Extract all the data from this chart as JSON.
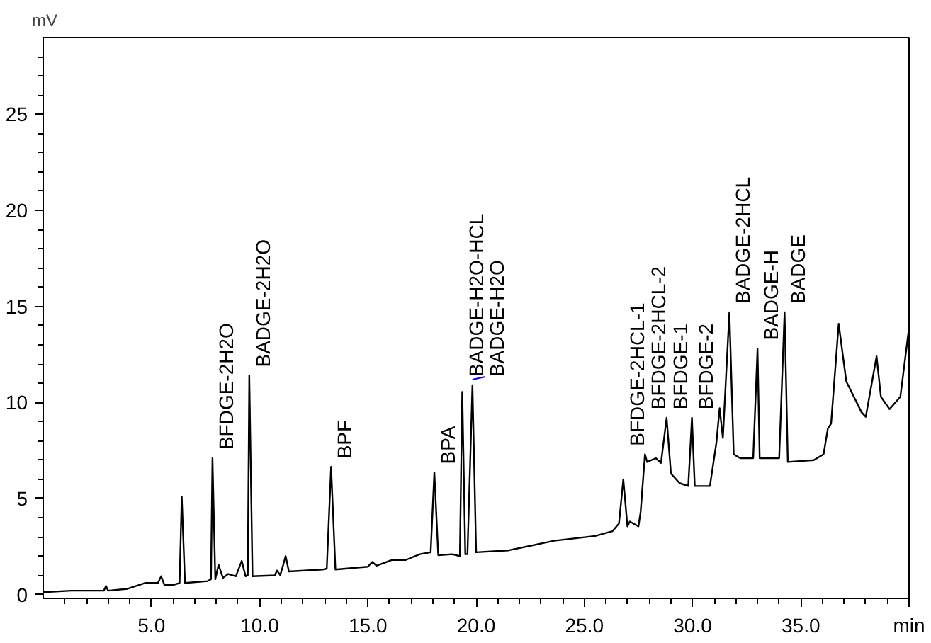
{
  "chart_data": {
    "type": "line",
    "ylabel": "mV",
    "xlim": [
      0,
      40
    ],
    "ylim": [
      -0.2,
      29
    ],
    "xticks": [
      {
        "value": 1,
        "label": null
      },
      {
        "value": 2,
        "label": null
      },
      {
        "value": 3,
        "label": null
      },
      {
        "value": 4,
        "label": null
      },
      {
        "value": 5,
        "label": "5.0"
      },
      {
        "value": 6,
        "label": null
      },
      {
        "value": 7,
        "label": null
      },
      {
        "value": 8,
        "label": null
      },
      {
        "value": 9,
        "label": null
      },
      {
        "value": 10,
        "label": "10.0"
      },
      {
        "value": 11,
        "label": null
      },
      {
        "value": 12,
        "label": null
      },
      {
        "value": 13,
        "label": null
      },
      {
        "value": 14,
        "label": null
      },
      {
        "value": 15,
        "label": "15.0"
      },
      {
        "value": 16,
        "label": null
      },
      {
        "value": 17,
        "label": null
      },
      {
        "value": 18,
        "label": null
      },
      {
        "value": 19,
        "label": null
      },
      {
        "value": 20,
        "label": "20.0"
      },
      {
        "value": 21,
        "label": null
      },
      {
        "value": 22,
        "label": null
      },
      {
        "value": 23,
        "label": null
      },
      {
        "value": 24,
        "label": null
      },
      {
        "value": 25,
        "label": "25.0"
      },
      {
        "value": 26,
        "label": null
      },
      {
        "value": 27,
        "label": null
      },
      {
        "value": 28,
        "label": null
      },
      {
        "value": 29,
        "label": null
      },
      {
        "value": 30,
        "label": "30.0"
      },
      {
        "value": 31,
        "label": null
      },
      {
        "value": 32,
        "label": null
      },
      {
        "value": 33,
        "label": null
      },
      {
        "value": 34,
        "label": null
      },
      {
        "value": 35,
        "label": "35.0"
      },
      {
        "value": 36,
        "label": null
      },
      {
        "value": 37,
        "label": null
      },
      {
        "value": 38,
        "label": null
      },
      {
        "value": 39,
        "label": null
      },
      {
        "value": 40,
        "label": "min"
      }
    ],
    "yticks": [
      0,
      {
        "value": 1,
        "label": null
      },
      {
        "value": 2,
        "label": null
      },
      {
        "value": 3,
        "label": null
      },
      {
        "value": 4,
        "label": null
      },
      5,
      {
        "value": 6,
        "label": null
      },
      {
        "value": 7,
        "label": null
      },
      {
        "value": 8,
        "label": null
      },
      {
        "value": 9,
        "label": null
      },
      10,
      {
        "value": 11,
        "label": null
      },
      {
        "value": 12,
        "label": null
      },
      {
        "value": 13,
        "label": null
      },
      {
        "value": 14,
        "label": null
      },
      15,
      {
        "value": 16,
        "label": null
      },
      {
        "value": 17,
        "label": null
      },
      {
        "value": 18,
        "label": null
      },
      {
        "value": 19,
        "label": null
      },
      20,
      {
        "value": 21,
        "label": null
      },
      {
        "value": 22,
        "label": null
      },
      {
        "value": 23,
        "label": null
      },
      {
        "value": 24,
        "label": null
      },
      25,
      {
        "value": 26,
        "label": null
      },
      {
        "value": 27,
        "label": null
      },
      {
        "value": 28,
        "label": null
      }
    ],
    "grid": false,
    "marker": "none",
    "line_style": "solid",
    "series": [
      {
        "color": "#000000",
        "x": [
          0,
          1.3,
          2.8,
          2.9,
          3.0,
          3.9,
          4.7,
          5.3,
          5.45,
          5.6,
          6.0,
          6.3,
          6.4,
          6.55,
          7.6,
          7.75,
          7.82,
          7.95,
          8.1,
          8.3,
          8.55,
          8.9,
          9.17,
          9.35,
          9.45,
          9.52,
          9.67,
          10.7,
          10.8,
          10.95,
          11.2,
          11.35,
          12.9,
          13.1,
          13.3,
          13.5,
          15.0,
          15.2,
          15.4,
          16.1,
          16.75,
          17.4,
          17.9,
          18.07,
          18.25,
          18.9,
          19.25,
          19.36,
          19.5,
          19.6,
          19.83,
          20.0,
          21.5,
          23.6,
          25.5,
          26.3,
          26.6,
          26.8,
          26.99,
          27.1,
          27.5,
          27.6,
          27.8,
          27.9,
          28.3,
          28.54,
          28.8,
          29.0,
          29.4,
          29.8,
          29.97,
          30.1,
          30.8,
          31.1,
          31.25,
          31.4,
          31.7,
          31.9,
          32.2,
          32.8,
          33.0,
          33.1,
          34.0,
          34.25,
          34.4,
          35.6,
          36.05,
          36.25,
          36.4,
          36.75,
          37.1,
          37.8,
          38.0,
          38.5,
          38.7,
          39.1,
          39.6,
          40.0
        ],
        "values": [
          0.12,
          0.2,
          0.2,
          0.45,
          0.2,
          0.3,
          0.6,
          0.6,
          0.95,
          0.5,
          0.5,
          0.6,
          5.1,
          0.6,
          0.7,
          0.8,
          7.1,
          0.8,
          1.55,
          0.87,
          1.07,
          0.95,
          1.75,
          0.95,
          1.0,
          11.4,
          0.95,
          1.0,
          1.25,
          1.0,
          2.0,
          1.2,
          1.3,
          1.35,
          6.65,
          1.3,
          1.45,
          1.7,
          1.5,
          1.8,
          1.8,
          2.1,
          2.2,
          6.35,
          2.05,
          2.1,
          2.0,
          10.55,
          2.1,
          2.1,
          10.9,
          2.2,
          2.3,
          2.8,
          3.05,
          3.3,
          3.7,
          6.0,
          3.55,
          3.8,
          3.55,
          4.3,
          7.3,
          6.9,
          7.1,
          6.85,
          9.2,
          6.3,
          5.8,
          5.65,
          9.2,
          5.65,
          5.65,
          7.9,
          9.7,
          8.15,
          14.7,
          7.3,
          7.1,
          7.1,
          12.8,
          7.1,
          7.1,
          14.7,
          6.9,
          7.0,
          7.3,
          8.65,
          8.9,
          14.1,
          11.1,
          9.5,
          9.25,
          12.4,
          10.3,
          9.65,
          10.3,
          13.9
        ]
      }
    ],
    "annotations": [
      {
        "text": "BFDGE-2H2O",
        "x": 7.82,
        "y": 7.1
      },
      {
        "text": "BADGE-2H2O",
        "x": 9.52,
        "y": 11.4
      },
      {
        "text": "BPF",
        "x": 13.3,
        "y": 6.65
      },
      {
        "text": "BPA",
        "x": 18.07,
        "y": 6.35
      },
      {
        "text": "BADGE-H2O-HCL",
        "x": 19.36,
        "y": 10.55
      },
      {
        "text": "BADGE-H2O",
        "x": 19.83,
        "y": 10.9
      },
      {
        "text": "BFDGE-2HCL-1",
        "x": 26.8,
        "y": 6.0
      },
      {
        "text": "BFDGE-2HCL-2",
        "x": 27.8,
        "y": 7.3
      },
      {
        "text": "BFDGE-1",
        "x": 28.8,
        "y": 9.2
      },
      {
        "text": "BFDGE-2",
        "x": 29.97,
        "y": 9.2
      },
      {
        "text": "BADGE-2HCL",
        "x": 31.7,
        "y": 14.7
      },
      {
        "text": "BADGE-H",
        "x": 33.0,
        "y": 12.8
      },
      {
        "text": "BADGE",
        "x": 34.25,
        "y": 14.7
      }
    ]
  }
}
